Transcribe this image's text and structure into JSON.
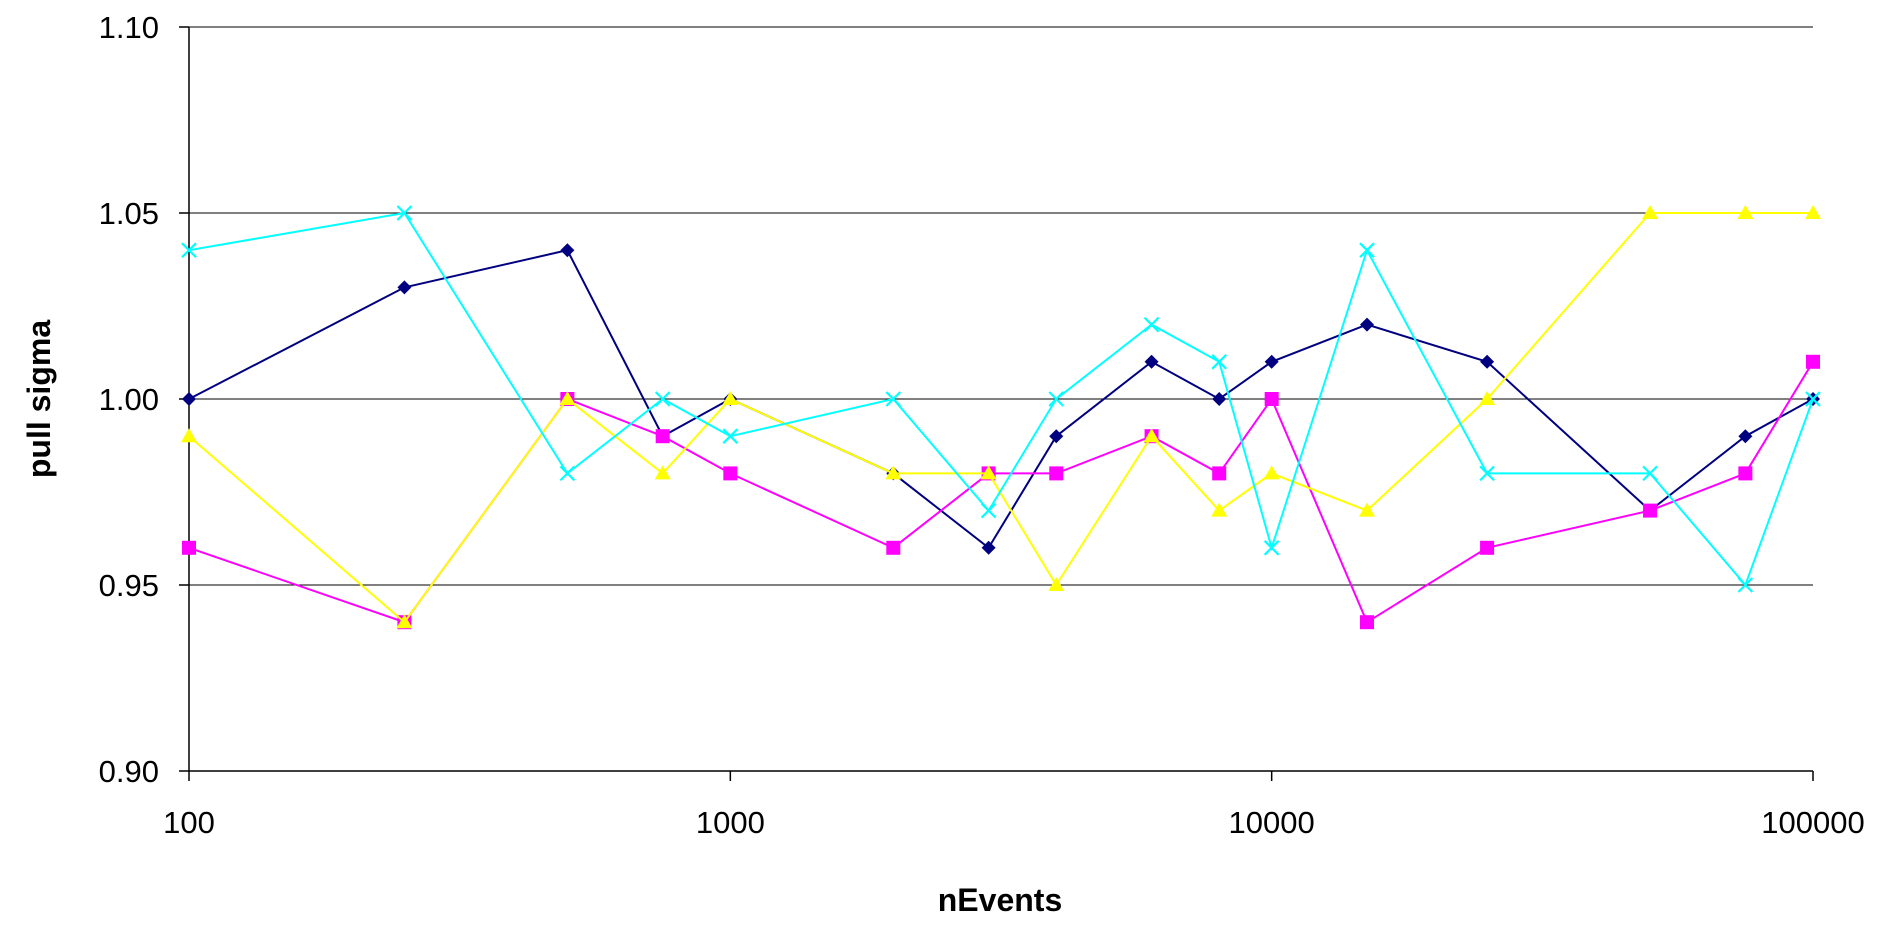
{
  "chart_data": {
    "type": "line",
    "title": "",
    "xlabel": "nEvents",
    "ylabel": "pull sigma",
    "x_scale": "log",
    "xlim": [
      100,
      100000
    ],
    "ylim": [
      0.9,
      1.1
    ],
    "x_ticks": [
      100,
      1000,
      10000,
      100000
    ],
    "x_tick_labels": [
      "100",
      "1000",
      "10000",
      "100000"
    ],
    "y_ticks": [
      0.9,
      0.95,
      1.0,
      1.05,
      1.1
    ],
    "y_tick_labels": [
      "0.90",
      "0.95",
      "1.00",
      "1.05",
      "1.10"
    ],
    "grid": "horizontal",
    "legend": "none",
    "x": [
      100,
      250,
      500,
      750,
      1000,
      2000,
      3000,
      4000,
      6000,
      8000,
      10000,
      15000,
      25000,
      50000,
      75000,
      100000
    ],
    "series": [
      {
        "color": "#000080",
        "marker": "diamond",
        "values": [
          1.0,
          1.03,
          1.04,
          0.99,
          1.0,
          0.98,
          0.96,
          0.99,
          1.01,
          1.0,
          1.01,
          1.02,
          1.01,
          0.97,
          0.99,
          1.0
        ]
      },
      {
        "color": "#FF00FF",
        "marker": "square",
        "values": [
          0.96,
          0.94,
          1.0,
          0.99,
          0.98,
          0.96,
          0.98,
          0.98,
          0.99,
          0.98,
          1.0,
          0.94,
          0.96,
          0.97,
          0.98,
          1.01
        ]
      },
      {
        "color": "#FFFF00",
        "marker": "triangle",
        "values": [
          0.99,
          0.94,
          1.0,
          0.98,
          1.0,
          0.98,
          0.98,
          0.95,
          0.99,
          0.97,
          0.98,
          0.97,
          1.0,
          1.05,
          1.05,
          1.05
        ]
      },
      {
        "color": "#00FFFF",
        "marker": "x",
        "values": [
          1.04,
          1.05,
          0.98,
          1.0,
          0.99,
          1.0,
          0.97,
          1.0,
          1.02,
          1.01,
          0.96,
          1.04,
          0.98,
          0.98,
          0.95,
          1.0
        ]
      }
    ]
  }
}
